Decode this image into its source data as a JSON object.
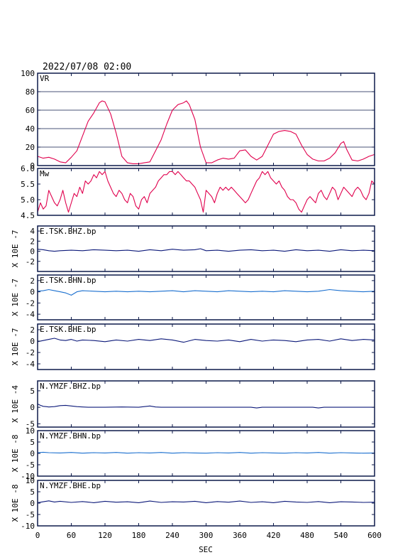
{
  "header": {
    "datetime": "2022/07/08 02:00"
  },
  "chart_data": {
    "type": "line",
    "x_range": [
      0,
      600
    ],
    "xticks": [
      0,
      60,
      120,
      180,
      240,
      300,
      360,
      420,
      480,
      540,
      600
    ],
    "xlabel": "SEC",
    "panels": [
      {
        "label": "VR",
        "color": "#e0004d",
        "ylim": [
          0,
          100
        ],
        "yticks": [
          "0",
          "20",
          "40",
          "60",
          "80",
          "100"
        ],
        "ytick_values": [
          0,
          20,
          40,
          60,
          80,
          100
        ],
        "grid": true,
        "ylabel": "",
        "x": [
          0,
          10,
          20,
          30,
          40,
          50,
          60,
          70,
          80,
          90,
          100,
          110,
          115,
          120,
          130,
          140,
          150,
          160,
          170,
          180,
          190,
          200,
          210,
          220,
          230,
          240,
          250,
          260,
          265,
          270,
          280,
          290,
          300,
          310,
          320,
          330,
          340,
          350,
          360,
          370,
          380,
          390,
          400,
          410,
          420,
          430,
          440,
          450,
          460,
          470,
          480,
          490,
          500,
          510,
          520,
          530,
          540,
          545,
          550,
          560,
          570,
          580,
          590,
          600
        ],
        "y": [
          10,
          8,
          9,
          7,
          4,
          3,
          9,
          16,
          32,
          48,
          57,
          68,
          70,
          69,
          56,
          35,
          10,
          3,
          2,
          2,
          3,
          4,
          16,
          28,
          45,
          60,
          66,
          68,
          70,
          66,
          50,
          20,
          3,
          3,
          6,
          8,
          7,
          8,
          16,
          17,
          10,
          6,
          10,
          22,
          34,
          37,
          38,
          37,
          34,
          22,
          12,
          7,
          5,
          5,
          8,
          14,
          24,
          26,
          18,
          6,
          5,
          7,
          10,
          12
        ]
      },
      {
        "label": "Mw",
        "color": "#e0004d",
        "ylim": [
          4.5,
          6.0
        ],
        "yticks": [
          "4.5",
          "5.0",
          "5.5",
          "6.0"
        ],
        "ytick_values": [
          4.5,
          5.0,
          5.5,
          6.0
        ],
        "grid": false,
        "ylabel": "",
        "x": [
          0,
          5,
          10,
          15,
          20,
          25,
          30,
          35,
          40,
          45,
          50,
          55,
          60,
          65,
          70,
          75,
          80,
          85,
          90,
          95,
          100,
          105,
          110,
          115,
          120,
          125,
          130,
          135,
          140,
          145,
          150,
          155,
          160,
          165,
          170,
          175,
          180,
          185,
          190,
          195,
          200,
          205,
          210,
          215,
          220,
          225,
          230,
          235,
          240,
          245,
          250,
          255,
          260,
          265,
          270,
          275,
          280,
          285,
          290,
          295,
          300,
          305,
          310,
          315,
          320,
          325,
          330,
          335,
          340,
          345,
          350,
          355,
          360,
          365,
          370,
          375,
          380,
          385,
          390,
          395,
          400,
          405,
          410,
          415,
          420,
          425,
          430,
          435,
          440,
          445,
          450,
          455,
          460,
          465,
          470,
          475,
          480,
          485,
          490,
          495,
          500,
          505,
          510,
          515,
          520,
          525,
          530,
          535,
          540,
          545,
          550,
          555,
          560,
          565,
          570,
          575,
          580,
          585,
          590,
          595,
          600
        ],
        "y": [
          4.6,
          4.9,
          4.7,
          4.8,
          5.3,
          5.1,
          4.9,
          4.8,
          5.0,
          5.3,
          4.9,
          4.6,
          4.9,
          5.2,
          5.1,
          5.4,
          5.2,
          5.6,
          5.5,
          5.6,
          5.8,
          5.7,
          5.9,
          5.8,
          5.9,
          5.6,
          5.4,
          5.2,
          5.1,
          5.3,
          5.2,
          5.0,
          4.9,
          5.2,
          5.1,
          4.8,
          4.7,
          5.0,
          5.1,
          4.9,
          5.2,
          5.3,
          5.4,
          5.6,
          5.7,
          5.8,
          5.8,
          5.9,
          5.9,
          5.8,
          5.9,
          5.8,
          5.7,
          5.6,
          5.6,
          5.5,
          5.4,
          5.2,
          5.0,
          4.6,
          5.3,
          5.2,
          5.1,
          4.9,
          5.2,
          5.4,
          5.3,
          5.4,
          5.3,
          5.4,
          5.3,
          5.2,
          5.1,
          5.0,
          4.9,
          5.0,
          5.2,
          5.4,
          5.6,
          5.7,
          5.9,
          5.8,
          5.9,
          5.7,
          5.6,
          5.5,
          5.6,
          5.4,
          5.3,
          5.1,
          5.0,
          5.0,
          4.9,
          4.7,
          4.6,
          4.8,
          5.0,
          5.1,
          5.0,
          4.9,
          5.2,
          5.3,
          5.1,
          5.0,
          5.2,
          5.4,
          5.3,
          5.0,
          5.2,
          5.4,
          5.3,
          5.2,
          5.1,
          5.3,
          5.4,
          5.3,
          5.1,
          5.0,
          5.2,
          5.6,
          5.5
        ]
      },
      {
        "label": "E.TSK.BHZ.bp",
        "color": "#0d1a7a",
        "ylim": [
          -4,
          5
        ],
        "yticks": [
          "-2",
          "0",
          "2",
          "4"
        ],
        "ytick_values": [
          -2,
          0,
          2,
          4
        ],
        "grid": false,
        "ylabel": "X 10E -7",
        "x": [
          0,
          10,
          20,
          30,
          40,
          60,
          80,
          100,
          120,
          140,
          160,
          180,
          200,
          220,
          240,
          260,
          280,
          290,
          300,
          320,
          340,
          360,
          380,
          400,
          420,
          440,
          460,
          480,
          500,
          520,
          540,
          560,
          580,
          600
        ],
        "y": [
          0.4,
          0.3,
          0.1,
          0.0,
          0.1,
          0.2,
          0.1,
          0.3,
          0.2,
          0.1,
          0.2,
          0.0,
          0.3,
          0.1,
          0.4,
          0.2,
          0.3,
          0.5,
          0.1,
          0.2,
          0.0,
          0.2,
          0.3,
          0.1,
          0.2,
          0.0,
          0.3,
          0.1,
          0.2,
          0.0,
          0.3,
          0.1,
          0.2,
          0.1
        ]
      },
      {
        "label": "E.TSK.BHN.bp",
        "color": "#1a6fcf",
        "ylim": [
          -5,
          3
        ],
        "yticks": [
          "-4",
          "-2",
          "0",
          "2"
        ],
        "ytick_values": [
          -4,
          -2,
          0,
          2
        ],
        "grid": false,
        "ylabel": "X 10E -7",
        "x": [
          0,
          10,
          20,
          30,
          40,
          50,
          60,
          70,
          80,
          100,
          120,
          140,
          160,
          180,
          200,
          220,
          240,
          260,
          280,
          300,
          320,
          340,
          360,
          380,
          400,
          420,
          440,
          460,
          480,
          500,
          520,
          540,
          560,
          580,
          600
        ],
        "y": [
          0.1,
          0.2,
          0.4,
          0.2,
          0.0,
          -0.2,
          -0.6,
          0.0,
          0.2,
          0.1,
          0.0,
          0.1,
          0.0,
          0.1,
          0.0,
          0.1,
          0.2,
          0.0,
          0.2,
          0.1,
          0.0,
          0.2,
          0.1,
          0.0,
          0.1,
          0.0,
          0.2,
          0.1,
          0.0,
          0.1,
          0.4,
          0.2,
          0.1,
          0.0,
          0.1
        ]
      },
      {
        "label": "E.TSK.BHE.bp",
        "color": "#0d1a7a",
        "ylim": [
          -5,
          3
        ],
        "yticks": [
          "-4",
          "-2",
          "0",
          "2"
        ],
        "ytick_values": [
          -4,
          -2,
          0,
          2
        ],
        "grid": false,
        "ylabel": "X 10E -7",
        "x": [
          0,
          10,
          20,
          30,
          40,
          50,
          60,
          70,
          80,
          100,
          120,
          140,
          160,
          180,
          200,
          220,
          240,
          260,
          280,
          300,
          320,
          340,
          360,
          380,
          400,
          420,
          440,
          460,
          480,
          500,
          520,
          540,
          560,
          580,
          600
        ],
        "y": [
          -0.1,
          0.1,
          0.3,
          0.5,
          0.2,
          0.1,
          0.3,
          0.0,
          0.2,
          0.1,
          -0.1,
          0.2,
          0.0,
          0.3,
          0.1,
          0.4,
          0.2,
          -0.2,
          0.3,
          0.1,
          0.0,
          0.2,
          -0.1,
          0.3,
          0.0,
          0.2,
          0.1,
          -0.1,
          0.2,
          0.3,
          0.0,
          0.4,
          0.1,
          0.3,
          0.2
        ]
      },
      {
        "label": "N.YMZF.BHZ.bp",
        "color": "#0d1a7a",
        "ylim": [
          -6,
          8
        ],
        "yticks": [
          "-5",
          "0",
          "5"
        ],
        "ytick_values": [
          -5,
          0,
          5
        ],
        "grid": false,
        "ylabel": "X 10E -4",
        "x": [
          0,
          5,
          10,
          15,
          20,
          30,
          40,
          50,
          60,
          70,
          80,
          90,
          100,
          120,
          150,
          180,
          200,
          210,
          220,
          240,
          270,
          300,
          330,
          360,
          380,
          390,
          400,
          430,
          460,
          490,
          500,
          510,
          540,
          570,
          600
        ],
        "y": [
          1.0,
          0.6,
          0.3,
          0.2,
          0.1,
          0.2,
          0.5,
          0.6,
          0.4,
          0.2,
          0.1,
          0.0,
          0.0,
          0.0,
          0.1,
          0.0,
          0.4,
          0.1,
          0.0,
          0.0,
          0.0,
          0.0,
          0.0,
          0.0,
          0.0,
          -0.2,
          0.0,
          0.0,
          0.0,
          0.0,
          -0.2,
          0.0,
          0.0,
          0.0,
          0.0
        ]
      },
      {
        "label": "N.YMZF.BHN.bp",
        "color": "#1a6fcf",
        "ylim": [
          -10,
          10
        ],
        "yticks": [
          "-10",
          "-5",
          "0",
          "5",
          "10"
        ],
        "ytick_values": [
          -10,
          -5,
          0,
          5,
          10
        ],
        "grid": false,
        "ylabel": "X 10E -8",
        "x": [
          0,
          10,
          20,
          40,
          60,
          80,
          100,
          120,
          140,
          160,
          180,
          200,
          220,
          240,
          260,
          280,
          300,
          320,
          340,
          360,
          380,
          400,
          420,
          440,
          460,
          480,
          500,
          520,
          540,
          560,
          580,
          600
        ],
        "y": [
          0.3,
          0.5,
          0.3,
          0.2,
          0.4,
          0.1,
          0.3,
          0.2,
          0.4,
          0.1,
          0.3,
          0.2,
          0.4,
          0.1,
          0.3,
          0.2,
          0.1,
          0.3,
          0.2,
          0.4,
          0.1,
          0.3,
          0.2,
          0.1,
          0.3,
          0.2,
          0.4,
          0.1,
          0.3,
          0.2,
          0.1,
          0.2
        ]
      },
      {
        "label": "N.YMZF.BHE.bp",
        "color": "#0d1a7a",
        "ylim": [
          -10,
          10
        ],
        "yticks": [
          "-10",
          "-5",
          "0",
          "5",
          "10"
        ],
        "ytick_values": [
          -10,
          -5,
          0,
          5,
          10
        ],
        "grid": false,
        "ylabel": "X 10E -8",
        "x": [
          0,
          10,
          20,
          30,
          40,
          60,
          80,
          100,
          120,
          140,
          160,
          180,
          200,
          220,
          240,
          260,
          280,
          300,
          320,
          340,
          360,
          380,
          400,
          420,
          440,
          460,
          480,
          500,
          520,
          540,
          560,
          580,
          600
        ],
        "y": [
          0.2,
          0.6,
          1.0,
          0.5,
          0.8,
          0.3,
          0.7,
          0.2,
          0.8,
          0.4,
          0.6,
          0.2,
          0.9,
          0.3,
          0.6,
          0.5,
          0.8,
          0.2,
          0.7,
          0.4,
          0.9,
          0.3,
          0.6,
          0.2,
          0.8,
          0.5,
          0.3,
          0.7,
          0.2,
          0.6,
          0.5,
          0.3,
          0.4
        ]
      }
    ]
  }
}
